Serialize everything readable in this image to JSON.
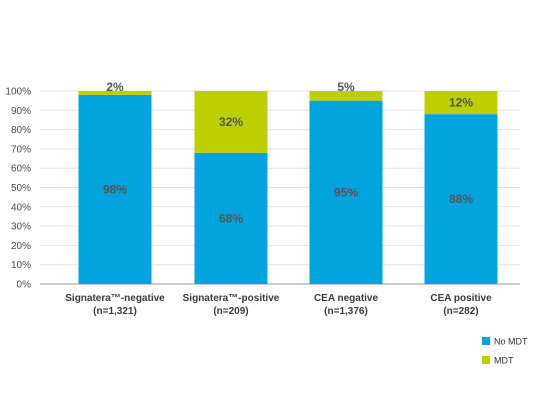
{
  "chart_data": {
    "type": "bar",
    "stacked": true,
    "categories": [
      [
        "Signatera™-negative",
        "(n=1,321)"
      ],
      [
        "Signatera™-positive",
        "(n=209)"
      ],
      [
        "CEA negative",
        "(n=1,376)"
      ],
      [
        "CEA positive",
        "(n=282)"
      ]
    ],
    "series": [
      {
        "name": "No MDT",
        "color": "#00a3dc",
        "values": [
          98,
          68,
          95,
          88
        ],
        "labels": [
          "98%",
          "68%",
          "95%",
          "88%"
        ]
      },
      {
        "name": "MDT",
        "color": "#bccf00",
        "values": [
          2,
          32,
          5,
          12
        ],
        "labels": [
          "2%",
          "32%",
          "5%",
          "12%"
        ]
      }
    ],
    "ylim": [
      0,
      100
    ],
    "yticks": [
      "0%",
      "10%",
      "20%",
      "30%",
      "40%",
      "50%",
      "60%",
      "70%",
      "80%",
      "90%",
      "100%"
    ],
    "grid": true,
    "legend_position": "bottom-right",
    "title": "",
    "xlabel": "",
    "ylabel": ""
  }
}
